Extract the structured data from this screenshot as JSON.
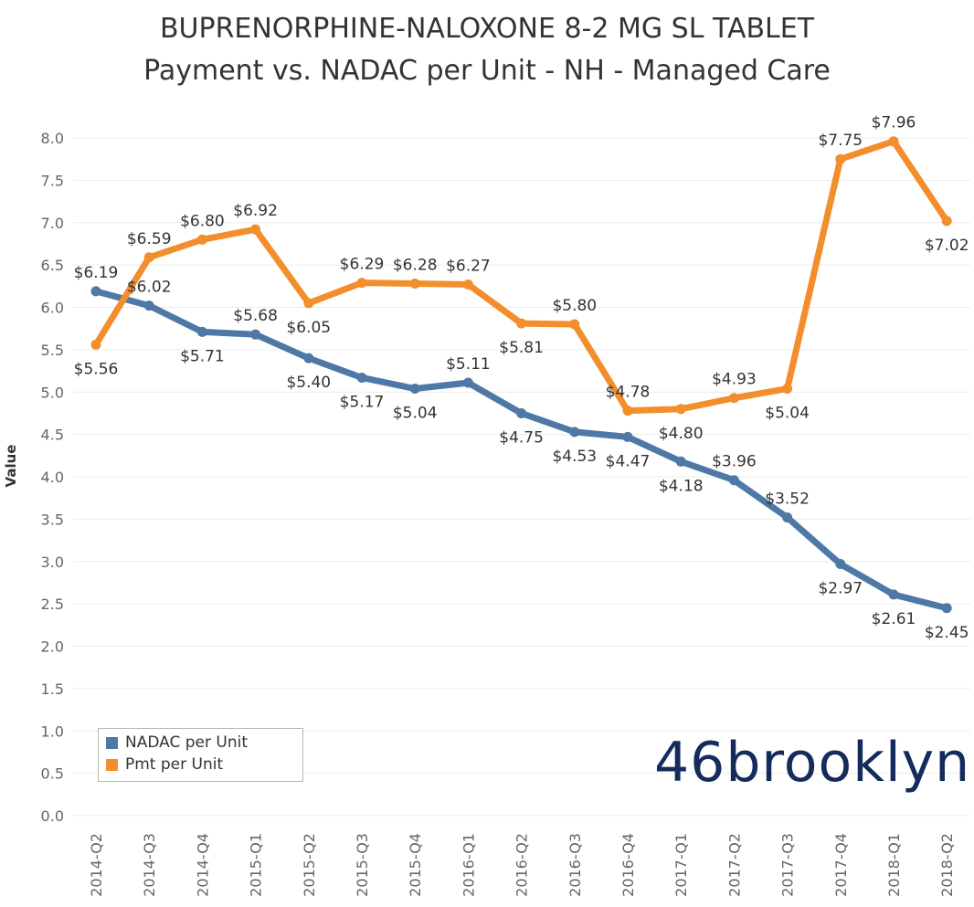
{
  "title": {
    "line1": "BUPRENORPHINE-NALOXONE 8-2 MG SL TABLET",
    "line2": "Payment vs. NADAC per Unit - NH - Managed Care"
  },
  "logo": {
    "text": "46brooklyn"
  },
  "colors": {
    "nadac": "#4e79a7",
    "pmt": "#f28e2b"
  },
  "chart_data": {
    "type": "line",
    "title": "BUPRENORPHINE-NALOXONE 8-2 MG SL TABLET Payment vs. NADAC per Unit - NH - Managed Care",
    "xlabel": "",
    "ylabel": "Value",
    "ylim": [
      0,
      8.0
    ],
    "yticks": [
      0.0,
      0.5,
      1.0,
      1.5,
      2.0,
      2.5,
      3.0,
      3.5,
      4.0,
      4.5,
      5.0,
      5.5,
      6.0,
      6.5,
      7.0,
      7.5,
      8.0
    ],
    "ytick_labels": [
      "0.0",
      "0.5",
      "1.0",
      "1.5",
      "2.0",
      "2.5",
      "3.0",
      "3.5",
      "4.0",
      "4.5",
      "5.0",
      "5.5",
      "6.0",
      "6.5",
      "7.0",
      "7.5",
      "8.0"
    ],
    "grid": true,
    "legend_position": "bottom-left",
    "categories": [
      "2014-Q2",
      "2014-Q3",
      "2014-Q4",
      "2015-Q1",
      "2015-Q2",
      "2015-Q3",
      "2015-Q4",
      "2016-Q1",
      "2016-Q2",
      "2016-Q3",
      "2016-Q4",
      "2017-Q1",
      "2017-Q2",
      "2017-Q3",
      "2017-Q4",
      "2018-Q1",
      "2018-Q2"
    ],
    "series": [
      {
        "name": "NADAC per Unit",
        "color": "#4e79a7",
        "values": [
          6.19,
          6.02,
          5.71,
          5.68,
          5.4,
          5.17,
          5.04,
          5.11,
          4.75,
          4.53,
          4.47,
          4.18,
          3.96,
          3.52,
          2.97,
          2.61,
          2.45
        ],
        "labels": [
          "$6.19",
          "$6.02",
          "$5.71",
          "$5.68",
          "$5.40",
          "$5.17",
          "$5.04",
          "$5.11",
          "$4.75",
          "$4.53",
          "$4.47",
          "$4.18",
          "$3.96",
          "$3.52",
          "$2.97",
          "$2.61",
          "$2.45"
        ],
        "label_pos": [
          "above",
          "above",
          "below",
          "above",
          "below",
          "below",
          "below",
          "above",
          "below",
          "below",
          "below",
          "below",
          "above",
          "above",
          "below",
          "below",
          "below"
        ]
      },
      {
        "name": "Pmt per Unit",
        "color": "#f28e2b",
        "values": [
          5.56,
          6.59,
          6.8,
          6.92,
          6.05,
          6.29,
          6.28,
          6.27,
          5.81,
          5.8,
          4.78,
          4.8,
          4.93,
          5.04,
          7.75,
          7.96,
          7.02
        ],
        "labels": [
          "$5.56",
          "$6.59",
          "$6.80",
          "$6.92",
          "$6.05",
          "$6.29",
          "$6.28",
          "$6.27",
          "$5.81",
          "$5.80",
          "$4.78",
          "$4.80",
          "$4.93",
          "$5.04",
          "$7.75",
          "$7.96",
          "$7.02"
        ],
        "label_pos": [
          "below",
          "above",
          "above",
          "above",
          "below",
          "above",
          "above",
          "above",
          "below",
          "above",
          "above",
          "below",
          "above",
          "below",
          "above",
          "above",
          "below"
        ]
      }
    ]
  }
}
